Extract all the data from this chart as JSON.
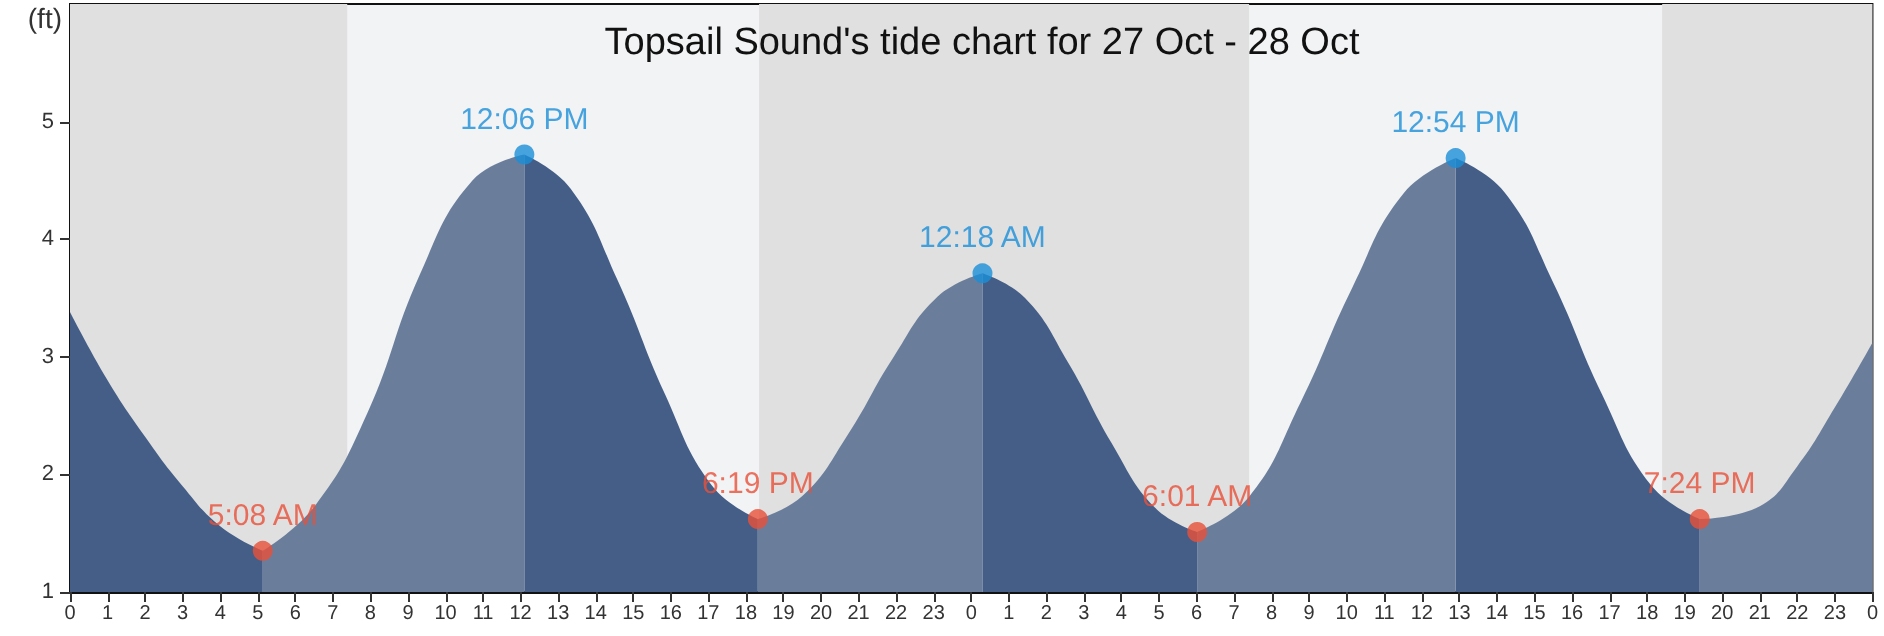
{
  "chart_data": {
    "type": "area",
    "title": "Topsail Sound's tide chart for 27 Oct - 28 Oct",
    "ylabel": "(ft)",
    "xlim": [
      "--10-27T00:00",
      "--10-29T00:00"
    ],
    "ylim": [
      1,
      6
    ],
    "xticks": [
      {
        "value": "--10-27T00:00",
        "label": "0"
      },
      {
        "value": "--10-27T01:00",
        "label": "1"
      },
      {
        "value": "--10-27T02:00",
        "label": "2"
      },
      {
        "value": "--10-27T03:00",
        "label": "3"
      },
      {
        "value": "--10-27T04:00",
        "label": "4"
      },
      {
        "value": "--10-27T05:00",
        "label": "5"
      },
      {
        "value": "--10-27T06:00",
        "label": "6"
      },
      {
        "value": "--10-27T07:00",
        "label": "7"
      },
      {
        "value": "--10-27T08:00",
        "label": "8"
      },
      {
        "value": "--10-27T09:00",
        "label": "9"
      },
      {
        "value": "--10-27T10:00",
        "label": "10"
      },
      {
        "value": "--10-27T11:00",
        "label": "11"
      },
      {
        "value": "--10-27T12:00",
        "label": "12"
      },
      {
        "value": "--10-27T13:00",
        "label": "13"
      },
      {
        "value": "--10-27T14:00",
        "label": "14"
      },
      {
        "value": "--10-27T15:00",
        "label": "15"
      },
      {
        "value": "--10-27T16:00",
        "label": "16"
      },
      {
        "value": "--10-27T17:00",
        "label": "17"
      },
      {
        "value": "--10-27T18:00",
        "label": "18"
      },
      {
        "value": "--10-27T19:00",
        "label": "19"
      },
      {
        "value": "--10-27T20:00",
        "label": "20"
      },
      {
        "value": "--10-27T21:00",
        "label": "21"
      },
      {
        "value": "--10-27T22:00",
        "label": "22"
      },
      {
        "value": "--10-27T23:00",
        "label": "23"
      },
      {
        "value": "--10-28T00:00",
        "label": "0"
      },
      {
        "value": "--10-28T01:00",
        "label": "1"
      },
      {
        "value": "--10-28T02:00",
        "label": "2"
      },
      {
        "value": "--10-28T03:00",
        "label": "3"
      },
      {
        "value": "--10-28T04:00",
        "label": "4"
      },
      {
        "value": "--10-28T05:00",
        "label": "5"
      },
      {
        "value": "--10-28T06:00",
        "label": "6"
      },
      {
        "value": "--10-28T07:00",
        "label": "7"
      },
      {
        "value": "--10-28T08:00",
        "label": "8"
      },
      {
        "value": "--10-28T09:00",
        "label": "9"
      },
      {
        "value": "--10-28T10:00",
        "label": "10"
      },
      {
        "value": "--10-28T11:00",
        "label": "11"
      },
      {
        "value": "--10-28T12:00",
        "label": "12"
      },
      {
        "value": "--10-28T13:00",
        "label": "13"
      },
      {
        "value": "--10-28T14:00",
        "label": "14"
      },
      {
        "value": "--10-28T15:00",
        "label": "15"
      },
      {
        "value": "--10-28T16:00",
        "label": "16"
      },
      {
        "value": "--10-28T17:00",
        "label": "17"
      },
      {
        "value": "--10-28T18:00",
        "label": "18"
      },
      {
        "value": "--10-28T19:00",
        "label": "19"
      },
      {
        "value": "--10-28T20:00",
        "label": "20"
      },
      {
        "value": "--10-28T21:00",
        "label": "21"
      },
      {
        "value": "--10-28T22:00",
        "label": "22"
      },
      {
        "value": "--10-28T23:00",
        "label": "23"
      },
      {
        "value": "--10-29T00:00",
        "label": "0"
      }
    ],
    "yticks": [
      1,
      2,
      3,
      4,
      5
    ],
    "grid": false,
    "bands": [
      {
        "axis": "x",
        "from": "--10-27T00:00",
        "to": "--10-27T07:23",
        "color": "#e0e0e0"
      },
      {
        "axis": "x",
        "from": "--10-27T18:21",
        "to": "--10-28T07:24",
        "color": "#e0e0e0"
      },
      {
        "axis": "x",
        "from": "--10-28T18:24",
        "to": "--10-29T00:00",
        "color": "#e0e0e0"
      }
    ],
    "annotations": [
      {
        "text": "12:06 PM",
        "x": "--10-27T12:06",
        "y": 4.72
      },
      {
        "text": "12:18 AM",
        "x": "--10-28T00:18",
        "y": 3.71
      },
      {
        "text": "12:54 PM",
        "x": "--10-28T12:54",
        "y": 4.69
      },
      {
        "text": "5:08 AM",
        "x": "--10-27T05:08",
        "y": 1.35
      },
      {
        "text": "6:19 PM",
        "x": "--10-27T18:19",
        "y": 1.62
      },
      {
        "text": "6:01 AM",
        "x": "--10-28T06:01",
        "y": 1.51
      },
      {
        "text": "7:24 PM",
        "x": "--10-28T19:24",
        "y": 1.62
      }
    ],
    "series": [
      {
        "color": "#445e87",
        "x": [
          "--10-27T00:00",
          "--10-27T01:00",
          "--10-27T02:00",
          "--10-27T03:00",
          "--10-27T04:00",
          "--10-27T05:08",
          "--10-27T08:36",
          "--10-27T12:06",
          "--10-27T13:20",
          "--10-27T14:35",
          "--10-27T15:50",
          "--10-27T17:05",
          "--10-27T18:19",
          "--10-27T21:18",
          "--10-28T00:18",
          "--10-28T01:26",
          "--10-28T02:35",
          "--10-28T03:44",
          "--10-28T04:53",
          "--10-28T06:01",
          "--10-28T09:30",
          "--10-28T12:54",
          "--10-28T14:12",
          "--10-28T15:30",
          "--10-28T16:48",
          "--10-28T18:06",
          "--10-28T19:24"
        ],
        "values": [
          3.38,
          2.8,
          2.32,
          1.9,
          1.56,
          1.35,
          null,
          4.72,
          4.43,
          3.65,
          2.69,
          1.91,
          1.62,
          null,
          3.71,
          3.5,
          2.95,
          2.27,
          1.72,
          1.51,
          null,
          4.69,
          4.4,
          3.63,
          2.68,
          1.91,
          1.62
        ]
      },
      {
        "color": "#6a7e9c",
        "x": [
          "--10-27T05:08",
          "--10-27T06:31",
          "--10-27T07:55",
          "--10-27T09:19",
          "--10-27T10:43",
          "--10-27T12:06",
          "--10-27T15:12",
          "--10-27T18:19",
          "--10-27T19:31",
          "--10-27T20:43",
          "--10-27T21:55",
          "--10-27T23:06",
          "--10-28T00:18",
          "--10-28T03:12",
          "--10-28T06:01",
          "--10-28T07:24",
          "--10-28T08:46",
          "--10-28T10:09",
          "--10-28T11:31",
          "--10-28T12:54",
          "--10-28T16:06",
          "--10-28T19:24",
          "--10-28T21:00",
          "--10-28T22:00",
          "--10-28T23:00",
          "--10-29T00:00"
        ],
        "values": [
          1.35,
          1.73,
          2.52,
          3.7,
          4.5,
          4.72,
          null,
          1.62,
          1.82,
          2.34,
          2.99,
          3.51,
          3.71,
          null,
          1.51,
          1.81,
          2.61,
          3.59,
          4.39,
          4.69,
          null,
          1.62,
          1.73,
          2.07,
          2.57,
          3.12
        ]
      },
      {
        "type": "scatter",
        "color": "#1a8fd8",
        "marker": "circle",
        "x": [
          "--10-27T12:06",
          "--10-28T00:18",
          "--10-28T12:54"
        ],
        "values": [
          4.72,
          3.71,
          4.69
        ]
      },
      {
        "type": "scatter",
        "color": "#e8503a",
        "marker": "circle",
        "x": [
          "--10-27T05:08",
          "--10-27T18:19",
          "--10-28T06:01",
          "--10-28T19:24"
        ],
        "values": [
          1.35,
          1.62,
          1.51,
          1.62
        ]
      }
    ]
  }
}
